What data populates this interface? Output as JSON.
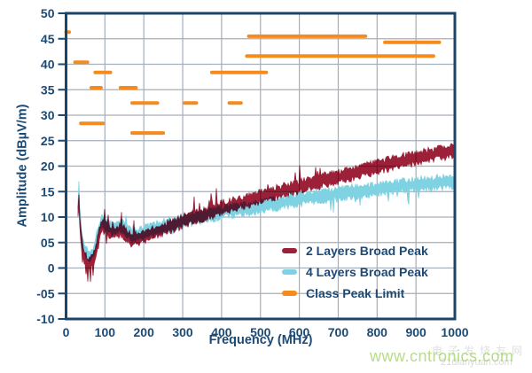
{
  "colors": {
    "navy": "#1c4a75",
    "border": "#1a4568",
    "grid": "#a6aeb9",
    "red": "#9c2038",
    "cyan": "#7fd2e2",
    "orange": "#f58a1d",
    "watermark_green": "rgba(140,198,63,0.62)",
    "watermark_gray": "#cfd3cf"
  },
  "watermarks": {
    "green": "www.cntronics.com",
    "gray_cjk": "电子发烧友网",
    "gray_latin": "21dianyuan.com"
  },
  "chart_data": {
    "type": "line",
    "title": "",
    "xlabel": "Frequency (MHz)",
    "ylabel": "Amplitude (dBµV/m)",
    "xlim": [
      0,
      1000
    ],
    "ylim": [
      -10,
      50
    ],
    "grid": true,
    "legend_position": "inside-bottom-right",
    "x_ticks": [
      0,
      100,
      200,
      300,
      400,
      500,
      600,
      700,
      800,
      900,
      1000
    ],
    "x_tick_labels": [
      "0",
      "100",
      "200",
      "300",
      "400",
      "500",
      "600",
      "700",
      "800",
      "900",
      "1000"
    ],
    "y_ticks": [
      50,
      45,
      40,
      35,
      30,
      25,
      20,
      15,
      10,
      5,
      0,
      -5,
      -10
    ],
    "y_tick_labels": [
      "50",
      "45",
      "40",
      "35",
      "30",
      "25",
      "20",
      "15",
      "10",
      "05",
      "0",
      "-05",
      "-10"
    ],
    "series": [
      {
        "name": "2 Layers Broad Peak",
        "color": "#9c2038",
        "style": "dense-noisy-band",
        "points": [
          [
            30,
            10
          ],
          [
            33,
            13.5
          ],
          [
            36,
            8
          ],
          [
            42,
            4
          ],
          [
            48,
            2
          ],
          [
            55,
            1
          ],
          [
            62,
            0.8
          ],
          [
            70,
            1.5
          ],
          [
            78,
            4
          ],
          [
            86,
            7
          ],
          [
            93,
            8.5
          ],
          [
            100,
            8
          ],
          [
            110,
            7.2
          ],
          [
            120,
            6.8
          ],
          [
            130,
            7.2
          ],
          [
            140,
            7.6
          ],
          [
            150,
            7
          ],
          [
            160,
            6.2
          ],
          [
            172,
            5.6
          ],
          [
            185,
            5.9
          ],
          [
            200,
            6.3
          ],
          [
            220,
            6.8
          ],
          [
            240,
            7.3
          ],
          [
            260,
            7.9
          ],
          [
            280,
            8.4
          ],
          [
            300,
            9.2
          ],
          [
            320,
            9.7
          ],
          [
            340,
            10.2
          ],
          [
            360,
            10.7
          ],
          [
            380,
            11.2
          ],
          [
            400,
            11.8
          ],
          [
            425,
            12.3
          ],
          [
            450,
            12.8
          ],
          [
            475,
            13.4
          ],
          [
            500,
            14
          ],
          [
            525,
            14.5
          ],
          [
            550,
            15
          ],
          [
            575,
            15.5
          ],
          [
            600,
            16
          ],
          [
            625,
            16.5
          ],
          [
            650,
            17
          ],
          [
            675,
            17.4
          ],
          [
            700,
            17.8
          ],
          [
            725,
            18.3
          ],
          [
            750,
            18.8
          ],
          [
            775,
            19.3
          ],
          [
            800,
            19.8
          ],
          [
            825,
            20.3
          ],
          [
            850,
            20.8
          ],
          [
            875,
            21.2
          ],
          [
            900,
            21.6
          ],
          [
            925,
            22
          ],
          [
            950,
            22.4
          ],
          [
            975,
            22.7
          ],
          [
            1000,
            23
          ]
        ],
        "noise_halfwidth": 1.5,
        "up_spike_zones": [
          [
            95,
            185,
            0.1,
            3.2
          ],
          [
            300,
            450,
            0.12,
            3.5
          ],
          [
            500,
            680,
            0.08,
            2.8
          ],
          [
            30,
            40,
            0.2,
            2
          ]
        ],
        "down_spike_zones": [
          [
            42,
            85,
            0.28,
            2.2
          ],
          [
            95,
            200,
            0.08,
            2
          ]
        ]
      },
      {
        "name": "4 Layers Broad Peak",
        "color": "#7fd2e2",
        "style": "dense-noisy-band",
        "points": [
          [
            30,
            11
          ],
          [
            33,
            16
          ],
          [
            36,
            9
          ],
          [
            42,
            5
          ],
          [
            48,
            3.5
          ],
          [
            55,
            2.8
          ],
          [
            62,
            2.5
          ],
          [
            70,
            3
          ],
          [
            78,
            5.5
          ],
          [
            86,
            8
          ],
          [
            93,
            9.5
          ],
          [
            100,
            8.8
          ],
          [
            110,
            8
          ],
          [
            120,
            7.6
          ],
          [
            130,
            8
          ],
          [
            140,
            8.4
          ],
          [
            150,
            7.8
          ],
          [
            160,
            7
          ],
          [
            172,
            6.4
          ],
          [
            185,
            6.6
          ],
          [
            200,
            7
          ],
          [
            220,
            7.4
          ],
          [
            240,
            7.9
          ],
          [
            260,
            8.4
          ],
          [
            280,
            8.8
          ],
          [
            300,
            9.3
          ],
          [
            320,
            9.6
          ],
          [
            340,
            9.9
          ],
          [
            360,
            10.3
          ],
          [
            380,
            10.6
          ],
          [
            400,
            11
          ],
          [
            425,
            11.2
          ],
          [
            450,
            11.4
          ],
          [
            475,
            11.7
          ],
          [
            500,
            12
          ],
          [
            525,
            12.4
          ],
          [
            550,
            12.8
          ],
          [
            575,
            13.1
          ],
          [
            600,
            13.5
          ],
          [
            625,
            13.8
          ],
          [
            650,
            14
          ],
          [
            675,
            14.3
          ],
          [
            700,
            14.5
          ],
          [
            725,
            14.8
          ],
          [
            750,
            15
          ],
          [
            775,
            15.2
          ],
          [
            800,
            15.5
          ],
          [
            825,
            15.7
          ],
          [
            850,
            16
          ],
          [
            875,
            16.2
          ],
          [
            900,
            16.4
          ],
          [
            925,
            16.6
          ],
          [
            950,
            16.8
          ],
          [
            975,
            16.9
          ],
          [
            1000,
            17
          ]
        ],
        "noise_halfwidth": 1.5,
        "up_spike_zones": [
          [
            80,
            190,
            0.12,
            3.0
          ],
          [
            30,
            40,
            0.3,
            2.5
          ]
        ],
        "down_spike_zones": [
          [
            650,
            950,
            0.08,
            2.8
          ],
          [
            200,
            300,
            0.05,
            1.5
          ]
        ]
      }
    ],
    "limits": {
      "name": "Class Peak Limit",
      "color": "#f58a1d",
      "segments_mhz_level": [
        [
          0,
          8,
          46.3
        ],
        [
          23,
          55,
          40.4
        ],
        [
          38,
          95,
          28.4
        ],
        [
          65,
          90,
          35.4
        ],
        [
          75,
          114,
          38.4
        ],
        [
          140,
          180,
          35.4
        ],
        [
          170,
          235,
          32.4
        ],
        [
          170,
          250,
          26.5
        ],
        [
          305,
          335,
          32.4
        ],
        [
          375,
          515,
          38.4
        ],
        [
          420,
          450,
          32.4
        ],
        [
          465,
          945,
          41.6
        ],
        [
          470,
          770,
          45.5
        ],
        [
          820,
          960,
          44.3
        ]
      ]
    }
  }
}
